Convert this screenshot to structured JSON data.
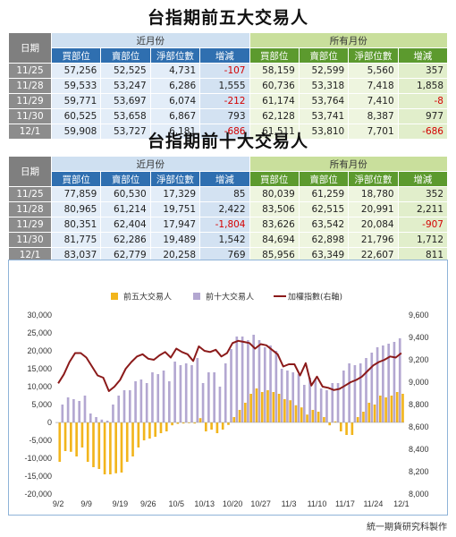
{
  "table1": {
    "title": "台指期前五大交易人",
    "header": {
      "date": "日期",
      "near": "近月份",
      "month": "所有月份",
      "cols": [
        "買部位",
        "賣部位",
        "淨部位數",
        "增減",
        "買部位",
        "賣部位",
        "淨部位數",
        "增減"
      ]
    },
    "rows": [
      {
        "date": "11/25",
        "vals": [
          "57,256",
          "52,525",
          "4,731",
          "-107",
          "58,159",
          "52,599",
          "5,560",
          "357"
        ]
      },
      {
        "date": "11/28",
        "vals": [
          "59,533",
          "53,247",
          "6,286",
          "1,555",
          "60,736",
          "53,318",
          "7,418",
          "1,858"
        ]
      },
      {
        "date": "11/29",
        "vals": [
          "59,771",
          "53,697",
          "6,074",
          "-212",
          "61,174",
          "53,764",
          "7,410",
          "-8"
        ]
      },
      {
        "date": "11/30",
        "vals": [
          "60,525",
          "53,658",
          "6,867",
          "793",
          "62,128",
          "53,741",
          "8,387",
          "977"
        ]
      },
      {
        "date": "12/1",
        "vals": [
          "59,908",
          "53,727",
          "6,181",
          "-686",
          "61,511",
          "53,810",
          "7,701",
          "-686"
        ]
      }
    ]
  },
  "table2": {
    "title": "台指期前十大交易人",
    "header": {
      "date": "日期",
      "near": "近月份",
      "month": "所有月份",
      "cols": [
        "買部位",
        "賣部位",
        "淨部位數",
        "增減",
        "買部位",
        "賣部位",
        "淨部位數",
        "增減"
      ]
    },
    "rows": [
      {
        "date": "11/25",
        "vals": [
          "77,859",
          "60,530",
          "17,329",
          "85",
          "80,039",
          "61,259",
          "18,780",
          "352"
        ]
      },
      {
        "date": "11/28",
        "vals": [
          "80,965",
          "61,214",
          "19,751",
          "2,422",
          "83,506",
          "62,515",
          "20,991",
          "2,211"
        ]
      },
      {
        "date": "11/29",
        "vals": [
          "80,351",
          "62,404",
          "17,947",
          "-1,804",
          "83,626",
          "63,542",
          "20,084",
          "-907"
        ]
      },
      {
        "date": "11/30",
        "vals": [
          "81,775",
          "62,286",
          "19,489",
          "1,542",
          "84,694",
          "62,898",
          "21,796",
          "1,712"
        ]
      },
      {
        "date": "12/1",
        "vals": [
          "83,037",
          "62,779",
          "20,258",
          "769",
          "85,956",
          "63,349",
          "22,607",
          "811"
        ]
      }
    ]
  },
  "chart_data": {
    "type": "bar",
    "legend": [
      "前五大交易人",
      "前十大交易人",
      "加權指數(右軸)"
    ],
    "colors": {
      "top5": "#f2b51c",
      "top10": "#b3a7d1",
      "index": "#8b1a1a",
      "frame": "#8fb3d8"
    },
    "ylim": [
      -20000,
      30000
    ],
    "y2lim": [
      8000,
      9600
    ],
    "y_ticks": [
      "30,000",
      "25,000",
      "20,000",
      "15,000",
      "10,000",
      "5,000",
      "0",
      "-5,000",
      "-10,000",
      "-15,000",
      "-20,000"
    ],
    "y2_ticks": [
      "9,600",
      "9,400",
      "9,200",
      "9,000",
      "8,800",
      "8,600",
      "8,400",
      "8,200",
      "8,000"
    ],
    "x_labels": [
      "9/2",
      "9/9",
      "9/19",
      "9/26",
      "10/5",
      "10/13",
      "10/20",
      "10/27",
      "11/3",
      "11/10",
      "11/17",
      "11/24",
      "12/1"
    ],
    "x_label_index": [
      0,
      5,
      11,
      16,
      21,
      26,
      31,
      36,
      41,
      46,
      51,
      56,
      61
    ],
    "top5": [
      -11000,
      -8000,
      -8200,
      -9500,
      -7000,
      -11000,
      -12500,
      -13000,
      -14500,
      -14500,
      -14200,
      -14000,
      -11000,
      -9500,
      -7000,
      -5000,
      -4500,
      -4000,
      -3000,
      -2500,
      -800,
      -400,
      -300,
      -200,
      -300,
      1200,
      -2500,
      -2000,
      -3000,
      -2000,
      -700,
      1500,
      3500,
      5500,
      8000,
      9500,
      8500,
      9000,
      8500,
      8000,
      6500,
      6200,
      4800,
      4200,
      2200,
      3500,
      3000,
      1500,
      -800,
      300,
      -2500,
      -3500,
      -3500,
      1500,
      3000,
      5500,
      5000,
      7500,
      7000,
      7500,
      8500,
      8000
    ],
    "top10": [
      0,
      5000,
      7000,
      6500,
      6000,
      7500,
      2500,
      1500,
      800,
      500,
      5000,
      7500,
      9000,
      9000,
      11500,
      12000,
      11000,
      14000,
      13500,
      14500,
      11500,
      17000,
      16000,
      16500,
      16000,
      18000,
      11000,
      14000,
      14000,
      10000,
      16500,
      20500,
      24000,
      24000,
      23000,
      24500,
      23000,
      21000,
      21500,
      20000,
      15000,
      14500,
      14000,
      13500,
      10500,
      12500,
      12000,
      9500,
      9000,
      11000,
      11000,
      14500,
      16500,
      16000,
      16500,
      18000,
      19500,
      21000,
      21500,
      22000,
      22500,
      23500
    ],
    "index": [
      8990,
      9070,
      9180,
      9260,
      9260,
      9220,
      9140,
      9060,
      9040,
      8920,
      8960,
      9020,
      9120,
      9180,
      9230,
      9250,
      9210,
      9200,
      9240,
      9270,
      9220,
      9300,
      9270,
      9250,
      9190,
      9320,
      9280,
      9270,
      9290,
      9230,
      9260,
      9350,
      9370,
      9360,
      9350,
      9300,
      9340,
      9330,
      9290,
      9250,
      9140,
      9160,
      9160,
      9060,
      9170,
      8970,
      9050,
      8960,
      8950,
      8930,
      8940,
      8970,
      9000,
      9020,
      9050,
      9100,
      9150,
      9180,
      9200,
      9230,
      9220,
      9260
    ]
  },
  "credit": "統一期貨研究科製作"
}
